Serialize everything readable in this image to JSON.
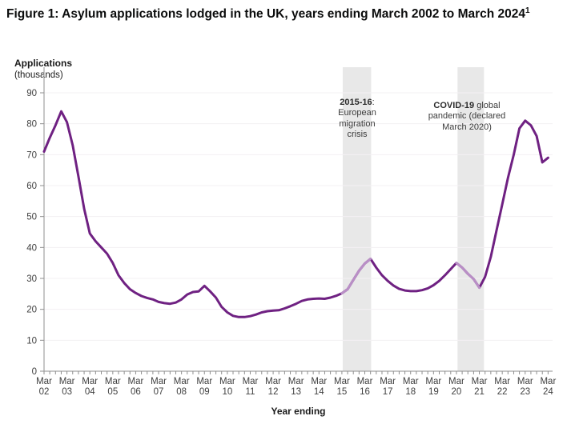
{
  "title": {
    "text": "Figure 1: Asylum applications lodged in the UK, years ending March 2002 to March 2024",
    "superscript": "1"
  },
  "y_axis": {
    "label": "Applications",
    "sublabel": "(thousands)",
    "ticks": [
      0,
      10,
      20,
      30,
      40,
      50,
      60,
      70,
      80,
      90
    ]
  },
  "x_axis": {
    "label": "Year ending",
    "ticks": [
      "Mar 02",
      "Mar 03",
      "Mar 04",
      "Mar 05",
      "Mar 06",
      "Mar 07",
      "Mar 08",
      "Mar 09",
      "Mar 10",
      "Mar 11",
      "Mar 12",
      "Mar 13",
      "Mar 14",
      "Mar 15",
      "Mar 16",
      "Mar 17",
      "Mar 18",
      "Mar 19",
      "Mar 20",
      "Mar 21",
      "Mar 22",
      "Mar 23",
      "Mar 24"
    ]
  },
  "annotations": [
    {
      "bold": "2015-16",
      "rest": ": European migration crisis"
    },
    {
      "bold": "COVID-19",
      "rest": " global pandemic (declared March 2020)"
    }
  ],
  "chart_data": {
    "type": "line",
    "title": "Asylum applications lodged in the UK, years ending March 2002 to March 2024",
    "xlabel": "Year ending",
    "ylabel": "Applications (thousands)",
    "ylim": [
      0,
      90
    ],
    "grid": true,
    "legend": "none",
    "categories": [
      "Mar 02",
      "Mar 03",
      "Mar 04",
      "Mar 05",
      "Mar 06",
      "Mar 07",
      "Mar 08",
      "Mar 09",
      "Mar 10",
      "Mar 11",
      "Mar 12",
      "Mar 13",
      "Mar 14",
      "Mar 15",
      "Mar 16",
      "Mar 17",
      "Mar 18",
      "Mar 19",
      "Mar 20",
      "Mar 21",
      "Mar 22",
      "Mar 23",
      "Mar 24"
    ],
    "series": [
      {
        "name": "Asylum applications (thousands), rolling year ending",
        "start": "Mar 2002",
        "end": "Mar 2024",
        "frequency": "quarterly",
        "values": [
          71,
          75.5,
          79.5,
          84,
          80.5,
          73,
          63,
          52.5,
          44.5,
          42,
          40,
          38,
          35,
          31,
          28.5,
          26.5,
          25.3,
          24.3,
          23.7,
          23.2,
          22.4,
          22,
          21.8,
          22.2,
          23.2,
          24.8,
          25.6,
          25.8,
          27.6,
          25.8,
          23.8,
          20.8,
          19,
          17.9,
          17.5,
          17.5,
          17.8,
          18.3,
          19,
          19.4,
          19.6,
          19.7,
          20.3,
          21,
          21.8,
          22.7,
          23.2,
          23.4,
          23.5,
          23.4,
          23.8,
          24.4,
          25.2,
          26.5,
          29.5,
          32.5,
          34.8,
          36.3,
          33.5,
          31,
          29.2,
          27.7,
          26.6,
          26.1,
          25.9,
          25.9,
          26.2,
          26.8,
          27.8,
          29.2,
          31,
          33,
          35,
          33.5,
          31.5,
          29.8,
          27,
          30.5,
          37,
          45.5,
          54,
          62.5,
          70,
          78.5,
          81,
          79.5,
          76,
          67.5,
          69
        ]
      }
    ],
    "year_end_march_values": {
      "Mar 02": 71,
      "Mar 03": 80.5,
      "Mar 04": 44.5,
      "Mar 05": 35,
      "Mar 06": 25.3,
      "Mar 07": 22.4,
      "Mar 08": 23.2,
      "Mar 09": 27.6,
      "Mar 10": 19,
      "Mar 11": 17.8,
      "Mar 12": 19.6,
      "Mar 13": 21.8,
      "Mar 14": 23.5,
      "Mar 15": 25.2,
      "Mar 16": 34.8,
      "Mar 17": 29.2,
      "Mar 18": 25.9,
      "Mar 19": 27.8,
      "Mar 20": 35,
      "Mar 21": 27,
      "Mar 22": 54,
      "Mar 23": 81,
      "Mar 24": 69
    },
    "shaded_bands": [
      {
        "label": "2015-16: European migration crisis",
        "from_quarter": 52.15,
        "to_quarter": 57.1
      },
      {
        "label": "COVID-19 global pandemic (declared March 2020)",
        "from_quarter": 72.2,
        "to_quarter": 76.8
      }
    ],
    "highlight_segments": [
      {
        "from": 52,
        "to": 57
      },
      {
        "from": 72,
        "to": 76
      }
    ],
    "colors": {
      "line": "#6f2182",
      "highlight_line": "#b98fc6",
      "band": "#e8e8e8",
      "grid": "#f3f0f3",
      "axis": "#8f8f8f",
      "tick_text": "#3f3f3f"
    }
  }
}
